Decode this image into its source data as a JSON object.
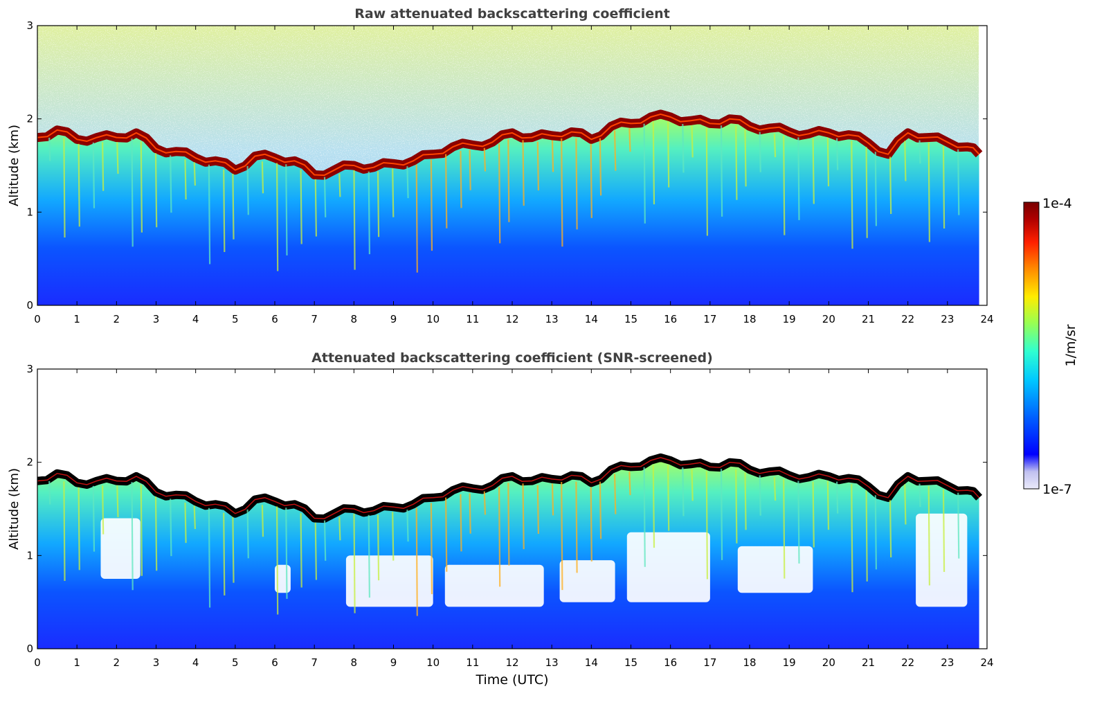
{
  "chart_data": [
    {
      "type": "heatmap",
      "title": "Raw attenuated backscattering coefficient",
      "xlabel": "",
      "ylabel": "Altitude (km)",
      "xlim": [
        0,
        24
      ],
      "ylim": [
        0,
        3
      ],
      "x_ticks": [
        "0",
        "1",
        "2",
        "3",
        "4",
        "5",
        "6",
        "7",
        "8",
        "9",
        "10",
        "11",
        "12",
        "13",
        "14",
        "15",
        "16",
        "17",
        "18",
        "19",
        "20",
        "21",
        "22",
        "23",
        "24"
      ],
      "y_ticks": [
        "0",
        "1",
        "2",
        "3"
      ],
      "data_end_time": 23.8,
      "top_layer_altitude": {
        "time": [
          0,
          0.5,
          1,
          1.5,
          2,
          2.5,
          3,
          3.5,
          4,
          4.5,
          5,
          5.5,
          6,
          6.5,
          7,
          7.5,
          8,
          8.5,
          9,
          9.5,
          10,
          10.5,
          11,
          11.5,
          12,
          12.5,
          13,
          13.5,
          14,
          14.5,
          15,
          15.5,
          16,
          16.5,
          17,
          17.5,
          18,
          18.5,
          19,
          19.5,
          20,
          20.5,
          21,
          21.5,
          22,
          22.5,
          23,
          23.5,
          23.8
        ],
        "altitude": [
          1.8,
          1.88,
          1.78,
          1.8,
          1.8,
          1.85,
          1.68,
          1.65,
          1.58,
          1.55,
          1.45,
          1.6,
          1.58,
          1.55,
          1.4,
          1.45,
          1.5,
          1.48,
          1.52,
          1.55,
          1.62,
          1.7,
          1.72,
          1.75,
          1.85,
          1.8,
          1.82,
          1.86,
          1.78,
          1.92,
          1.95,
          2.02,
          2.02,
          1.98,
          1.95,
          2.0,
          1.92,
          1.9,
          1.86,
          1.84,
          1.85,
          1.83,
          1.74,
          1.62,
          1.85,
          1.8,
          1.75,
          1.7,
          1.62
        ]
      }
    },
    {
      "type": "heatmap",
      "title": "Attenuated backscattering coefficient (SNR-screened)",
      "xlabel": "Time (UTC)",
      "ylabel": "Altitude (km)",
      "xlim": [
        0,
        24
      ],
      "ylim": [
        0,
        3
      ],
      "x_ticks": [
        "0",
        "1",
        "2",
        "3",
        "4",
        "5",
        "6",
        "7",
        "8",
        "9",
        "10",
        "11",
        "12",
        "13",
        "14",
        "15",
        "16",
        "17",
        "18",
        "19",
        "20",
        "21",
        "22",
        "23",
        "24"
      ],
      "y_ticks": [
        "0",
        "1",
        "2",
        "3"
      ],
      "data_end_time": 23.8
    }
  ],
  "colorbar": {
    "max_label": "1e-4",
    "min_label": "1e-7",
    "unit_label": "1/m/sr",
    "colors": [
      "#e8e8f8",
      "#c8c8f0",
      "#0000ff",
      "#0066ff",
      "#00ccff",
      "#33ffcc",
      "#99ff55",
      "#ffee00",
      "#ff8800",
      "#ff2200",
      "#aa0000",
      "#7a0000"
    ]
  }
}
